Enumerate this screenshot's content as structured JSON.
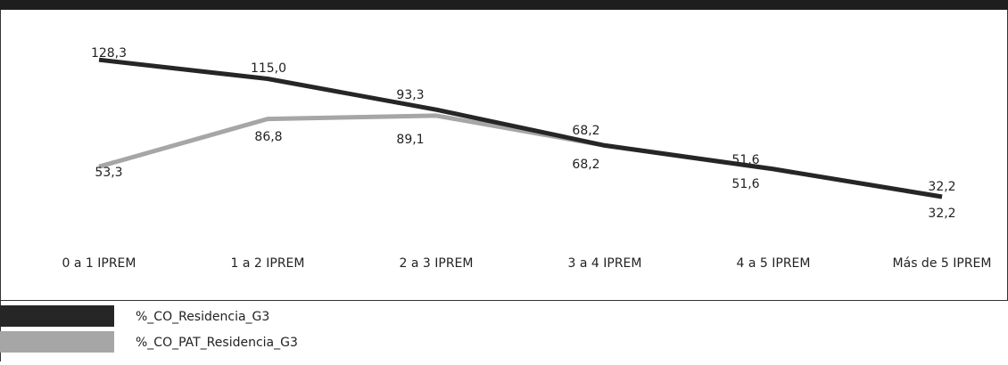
{
  "chart_data": {
    "type": "line",
    "categories": [
      "0 a 1 IPREM",
      "1 a 2 IPREM",
      "2 a 3 IPREM",
      "3 a 4 IPREM",
      "4 a 5 IPREM",
      "Más de 5 IPREM"
    ],
    "series": [
      {
        "name": "%_CO_Residencia_G3",
        "values": [
          128.3,
          115.0,
          93.3,
          68.2,
          51.6,
          32.2
        ],
        "color": "#262626"
      },
      {
        "name": "%_CO_PAT_Residencia_G3",
        "values": [
          53.3,
          86.8,
          89.1,
          68.2,
          51.6,
          32.2
        ],
        "color": "#a6a6a6"
      }
    ],
    "data_labels": [
      [
        "128,3",
        "115,0",
        "93,3",
        "68,2",
        "51,6",
        "32,2"
      ],
      [
        "53,3",
        "86,8",
        "89,1",
        "68,2",
        "51,6",
        "32,2"
      ]
    ],
    "legend": {
      "position": "bottom-left"
    },
    "grid": false,
    "title": "",
    "xlabel": "",
    "ylabel": ""
  }
}
